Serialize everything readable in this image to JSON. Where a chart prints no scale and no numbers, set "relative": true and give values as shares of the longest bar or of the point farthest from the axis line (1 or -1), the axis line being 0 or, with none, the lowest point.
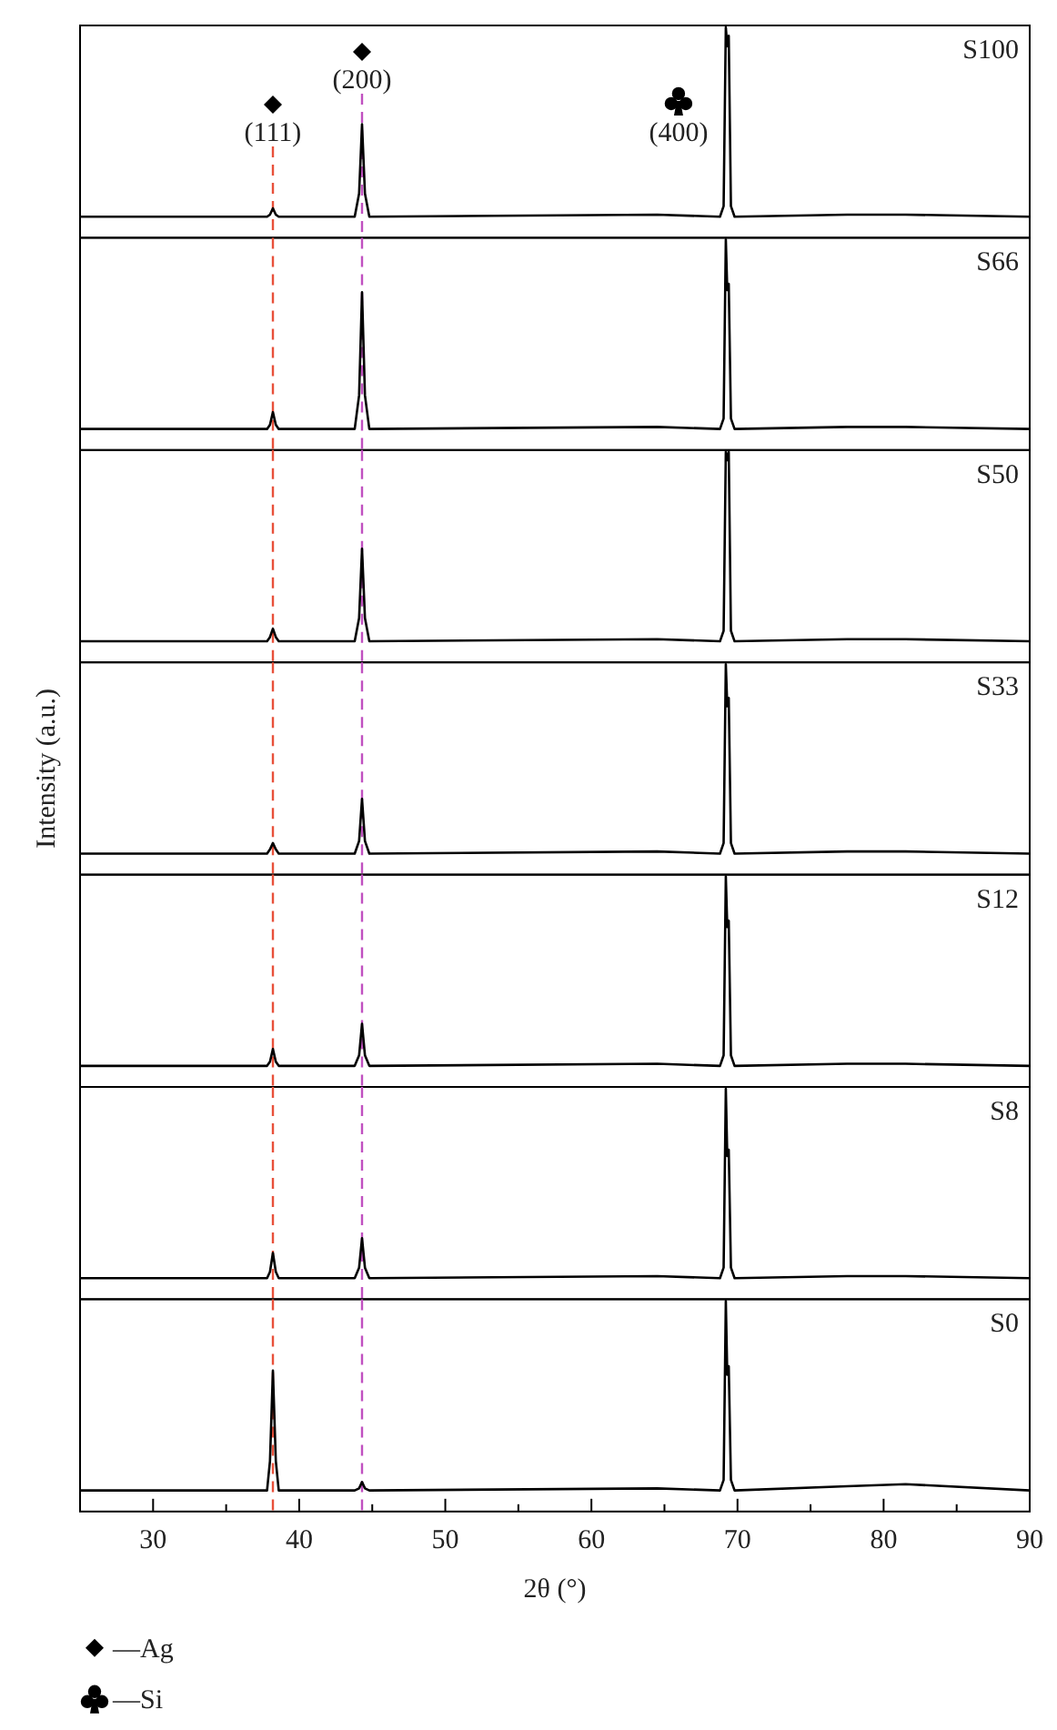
{
  "chart_data": [
    {
      "type": "line",
      "relative": true,
      "xlim": [
        25,
        90
      ],
      "tick_labels": false,
      "legend": false,
      "x": [
        25,
        37.8,
        38.0,
        38.2,
        38.4,
        38.6,
        43.8,
        44.1,
        44.3,
        44.5,
        44.8,
        64.5,
        68.8,
        69.05,
        69.2,
        69.3,
        69.4,
        69.55,
        69.8,
        77.5,
        81.5,
        90
      ],
      "series": [
        {
          "name": "S100",
          "color": "#000000",
          "values": [
            0.1,
            0.1,
            0.11,
            0.14,
            0.11,
            0.1,
            0.1,
            0.21,
            0.54,
            0.21,
            0.1,
            0.11,
            0.1,
            0.15,
            1,
            0.91,
            0.96,
            0.15,
            0.1,
            0.11,
            0.11,
            0.1
          ]
        }
      ],
      "ref_lines": [
        {
          "axis": "x",
          "value": 38.2,
          "color": "#e8503a",
          "line_style": "dashed"
        },
        {
          "axis": "x",
          "value": 44.3,
          "color": "#c050c0",
          "line_style": "dashed"
        }
      ],
      "annotations": [
        {
          "text": "(111)",
          "x": 38.2,
          "y": 0.46
        },
        {
          "text": "(200)",
          "x": 44.3,
          "y": 0.71
        },
        {
          "text": "(400)",
          "x": 69.2,
          "y": 0.46
        }
      ]
    },
    {
      "type": "line",
      "relative": true,
      "xlim": [
        25,
        90
      ],
      "tick_labels": false,
      "legend": false,
      "x": [
        25,
        37.8,
        38.0,
        38.2,
        38.4,
        38.6,
        43.8,
        44.1,
        44.3,
        44.5,
        44.8,
        64.5,
        68.8,
        69.05,
        69.2,
        69.3,
        69.4,
        69.55,
        69.8,
        77.5,
        81.5,
        90
      ],
      "series": [
        {
          "name": "S66",
          "color": "#000000",
          "values": [
            0.1,
            0.1,
            0.12,
            0.18,
            0.12,
            0.1,
            0.1,
            0.26,
            0.75,
            0.26,
            0.1,
            0.11,
            0.1,
            0.15,
            1,
            0.76,
            0.79,
            0.15,
            0.1,
            0.11,
            0.11,
            0.1
          ]
        }
      ],
      "ref_lines": [
        {
          "axis": "x",
          "value": 38.2,
          "color": "#e8503a",
          "line_style": "dashed"
        },
        {
          "axis": "x",
          "value": 44.3,
          "color": "#c050c0",
          "line_style": "dashed"
        }
      ]
    },
    {
      "type": "line",
      "relative": true,
      "xlim": [
        25,
        90
      ],
      "tick_labels": false,
      "legend": false,
      "x": [
        25,
        37.8,
        38.0,
        38.2,
        38.4,
        38.6,
        43.8,
        44.1,
        44.3,
        44.5,
        44.8,
        64.5,
        68.8,
        69.05,
        69.2,
        69.3,
        69.4,
        69.55,
        69.8,
        77.5,
        81.5,
        90
      ],
      "series": [
        {
          "name": "S50",
          "color": "#000000",
          "values": [
            0.1,
            0.1,
            0.12,
            0.16,
            0.12,
            0.1,
            0.1,
            0.21,
            0.54,
            0.21,
            0.1,
            0.11,
            0.1,
            0.15,
            1,
            0.96,
            1,
            0.15,
            0.1,
            0.11,
            0.11,
            0.1
          ]
        }
      ],
      "ref_lines": [
        {
          "axis": "x",
          "value": 38.2,
          "color": "#e8503a",
          "line_style": "dashed"
        },
        {
          "axis": "x",
          "value": 44.3,
          "color": "#c050c0",
          "line_style": "dashed"
        }
      ]
    },
    {
      "type": "line",
      "relative": true,
      "xlim": [
        25,
        90
      ],
      "tick_labels": false,
      "legend": false,
      "ylabel": "Intensity (a.u.)",
      "x": [
        25,
        37.8,
        38.0,
        38.2,
        38.4,
        38.6,
        43.8,
        44.1,
        44.3,
        44.5,
        44.8,
        64.5,
        68.8,
        69.05,
        69.2,
        69.3,
        69.4,
        69.55,
        69.8,
        77.5,
        81.5,
        90
      ],
      "series": [
        {
          "name": "S33",
          "color": "#000000",
          "values": [
            0.1,
            0.1,
            0.12,
            0.15,
            0.12,
            0.1,
            0.1,
            0.16,
            0.36,
            0.16,
            0.1,
            0.11,
            0.1,
            0.15,
            1,
            0.8,
            0.84,
            0.15,
            0.1,
            0.11,
            0.11,
            0.1
          ]
        }
      ],
      "ref_lines": [
        {
          "axis": "x",
          "value": 38.2,
          "color": "#e8503a",
          "line_style": "dashed"
        },
        {
          "axis": "x",
          "value": 44.3,
          "color": "#c050c0",
          "line_style": "dashed"
        }
      ]
    },
    {
      "type": "line",
      "relative": true,
      "xlim": [
        25,
        90
      ],
      "tick_labels": false,
      "legend": false,
      "x": [
        25,
        37.8,
        38.0,
        38.2,
        38.4,
        38.6,
        43.8,
        44.1,
        44.3,
        44.5,
        44.8,
        64.5,
        68.8,
        69.05,
        69.2,
        69.3,
        69.4,
        69.55,
        69.8,
        77.5,
        81.5,
        90
      ],
      "series": [
        {
          "name": "S12",
          "color": "#000000",
          "values": [
            0.1,
            0.1,
            0.12,
            0.18,
            0.12,
            0.1,
            0.1,
            0.15,
            0.3,
            0.15,
            0.1,
            0.11,
            0.1,
            0.15,
            1,
            0.76,
            0.79,
            0.15,
            0.1,
            0.11,
            0.11,
            0.1
          ]
        }
      ],
      "ref_lines": [
        {
          "axis": "x",
          "value": 38.2,
          "color": "#e8503a",
          "line_style": "dashed"
        },
        {
          "axis": "x",
          "value": 44.3,
          "color": "#c050c0",
          "line_style": "dashed"
        }
      ]
    },
    {
      "type": "line",
      "relative": true,
      "xlim": [
        25,
        90
      ],
      "tick_labels": false,
      "legend": false,
      "x": [
        25,
        37.8,
        38.0,
        38.2,
        38.4,
        38.6,
        43.8,
        44.1,
        44.3,
        44.5,
        44.8,
        64.5,
        68.8,
        69.05,
        69.2,
        69.3,
        69.4,
        69.55,
        69.8,
        77.5,
        81.5,
        90
      ],
      "series": [
        {
          "name": "S8",
          "color": "#000000",
          "values": [
            0.1,
            0.1,
            0.13,
            0.22,
            0.13,
            0.1,
            0.1,
            0.15,
            0.29,
            0.15,
            0.1,
            0.11,
            0.1,
            0.15,
            1,
            0.68,
            0.71,
            0.15,
            0.1,
            0.11,
            0.11,
            0.1
          ]
        }
      ],
      "ref_lines": [
        {
          "axis": "x",
          "value": 38.2,
          "color": "#e8503a",
          "line_style": "dashed"
        },
        {
          "axis": "x",
          "value": 44.3,
          "color": "#c050c0",
          "line_style": "dashed"
        }
      ]
    },
    {
      "type": "line",
      "relative": true,
      "xlim": [
        25,
        90
      ],
      "tick_labels": "x",
      "legend": false,
      "xlabel": "2θ (°)",
      "x": [
        25,
        37.8,
        38.0,
        38.2,
        38.4,
        38.6,
        43.8,
        44.1,
        44.3,
        44.5,
        44.8,
        64.5,
        68.8,
        69.05,
        69.2,
        69.3,
        69.4,
        69.55,
        69.8,
        77.5,
        81.5,
        90
      ],
      "xticks": [
        30,
        {
          "value": 35,
          "label": null
        },
        40,
        {
          "value": 45,
          "label": null
        },
        50,
        {
          "value": 55,
          "label": null
        },
        60,
        {
          "value": 65,
          "label": null
        },
        70,
        {
          "value": 75,
          "label": null
        },
        80,
        {
          "value": 85,
          "label": null
        },
        90
      ],
      "series": [
        {
          "name": "S0",
          "color": "#000000",
          "values": [
            0.1,
            0.1,
            0.24,
            0.67,
            0.24,
            0.1,
            0.1,
            0.11,
            0.14,
            0.11,
            0.1,
            0.11,
            0.1,
            0.15,
            1,
            0.65,
            0.69,
            0.15,
            0.1,
            0.12,
            0.13,
            0.1
          ]
        }
      ],
      "ref_lines": [
        {
          "axis": "x",
          "value": 38.2,
          "color": "#e8503a",
          "line_style": "dashed"
        },
        {
          "axis": "x",
          "value": 44.3,
          "color": "#c050c0",
          "line_style": "dashed"
        }
      ],
      "annotations": [
        "—Ag",
        "—Si"
      ]
    }
  ]
}
